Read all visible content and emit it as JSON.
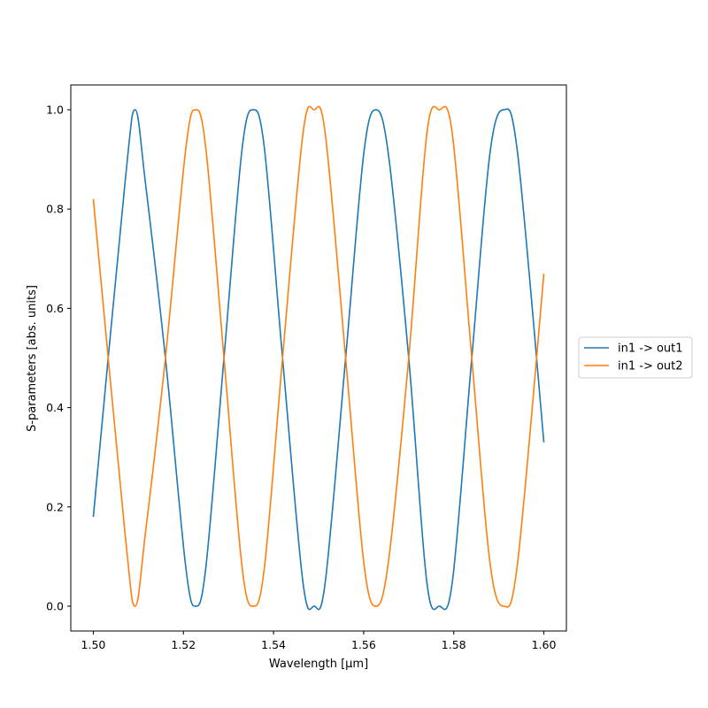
{
  "chart_data": {
    "type": "line",
    "xlabel": "Wavelength [μm]",
    "ylabel": "S-parameters [abs. units]",
    "xlim": [
      1.495,
      1.605
    ],
    "ylim": [
      -0.05,
      1.05
    ],
    "x_ticks": [
      "1.50",
      "1.52",
      "1.54",
      "1.56",
      "1.58",
      "1.60"
    ],
    "y_ticks": [
      "0.0",
      "0.2",
      "0.4",
      "0.6",
      "0.8",
      "1.0"
    ],
    "grid": false,
    "legend_position": "outside-right",
    "x": [
      1.5,
      1.507,
      1.5093,
      1.5116,
      1.516,
      1.5205,
      1.5227,
      1.525,
      1.529,
      1.533,
      1.5355,
      1.538,
      1.542,
      1.5465,
      1.549,
      1.5515,
      1.556,
      1.56,
      1.5627,
      1.5655,
      1.57,
      1.574,
      1.5768,
      1.5797,
      1.584,
      1.588,
      1.5911,
      1.5942,
      1.6
    ],
    "series": [
      {
        "name": "in1 -> out1",
        "color": "#1f77b4",
        "values": [
          0.18,
          0.85,
          1.0,
          0.85,
          0.5,
          0.08,
          0.0,
          0.08,
          0.5,
          0.92,
          1.0,
          0.92,
          0.5,
          0.05,
          0.0,
          0.05,
          0.5,
          0.91,
          1.0,
          0.91,
          0.5,
          0.05,
          0.0,
          0.05,
          0.5,
          0.91,
          1.0,
          0.91,
          0.33
        ]
      },
      {
        "name": "in1 -> out2",
        "color": "#ff7f0e",
        "values": [
          0.82,
          0.15,
          0.0,
          0.15,
          0.5,
          0.92,
          1.0,
          0.92,
          0.5,
          0.08,
          0.0,
          0.08,
          0.5,
          0.95,
          1.0,
          0.95,
          0.5,
          0.09,
          0.0,
          0.09,
          0.5,
          0.95,
          1.0,
          0.95,
          0.5,
          0.09,
          0.0,
          0.09,
          0.67
        ]
      }
    ]
  }
}
